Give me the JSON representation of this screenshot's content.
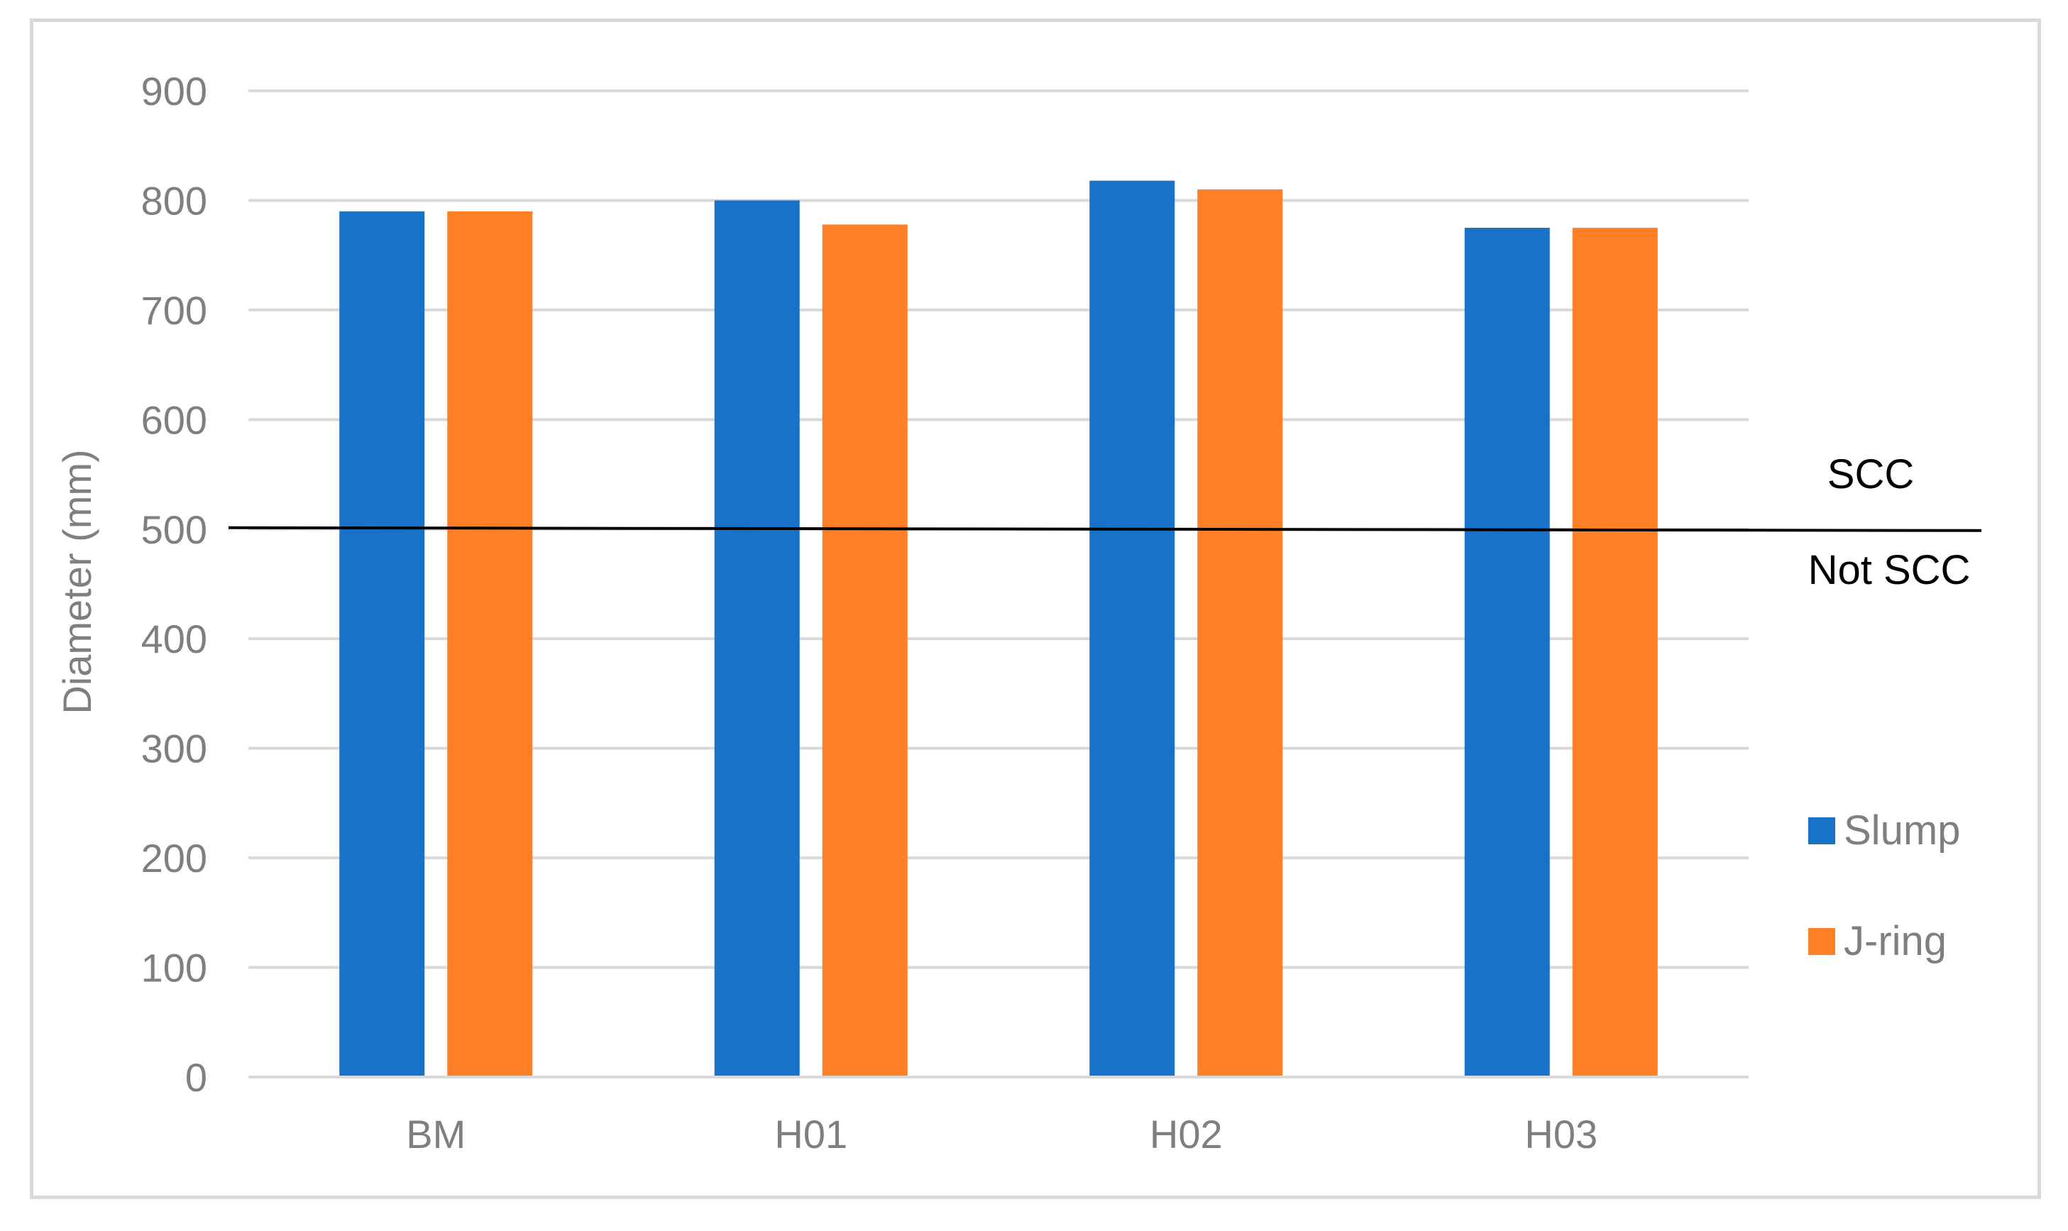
{
  "chart_data": {
    "type": "bar",
    "title": "",
    "xlabel": "",
    "ylabel": "Diameter (mm)",
    "ylim": [
      0,
      900
    ],
    "yticks": [
      0,
      100,
      200,
      300,
      400,
      500,
      600,
      700,
      800,
      900
    ],
    "categories": [
      "BM",
      "H01",
      "H02",
      "H03"
    ],
    "series": [
      {
        "name": "Slump",
        "color": "#1872c7",
        "values": [
          790,
          800,
          818,
          775
        ]
      },
      {
        "name": "J-ring",
        "color": "#ff7f27",
        "values": [
          790,
          778,
          810,
          775
        ]
      }
    ],
    "grid": true,
    "legend_position": "right",
    "reference_line": {
      "value": 500,
      "color": "#000000"
    },
    "annotations": {
      "above_line": "SCC",
      "below_line": "Not SCC"
    }
  }
}
